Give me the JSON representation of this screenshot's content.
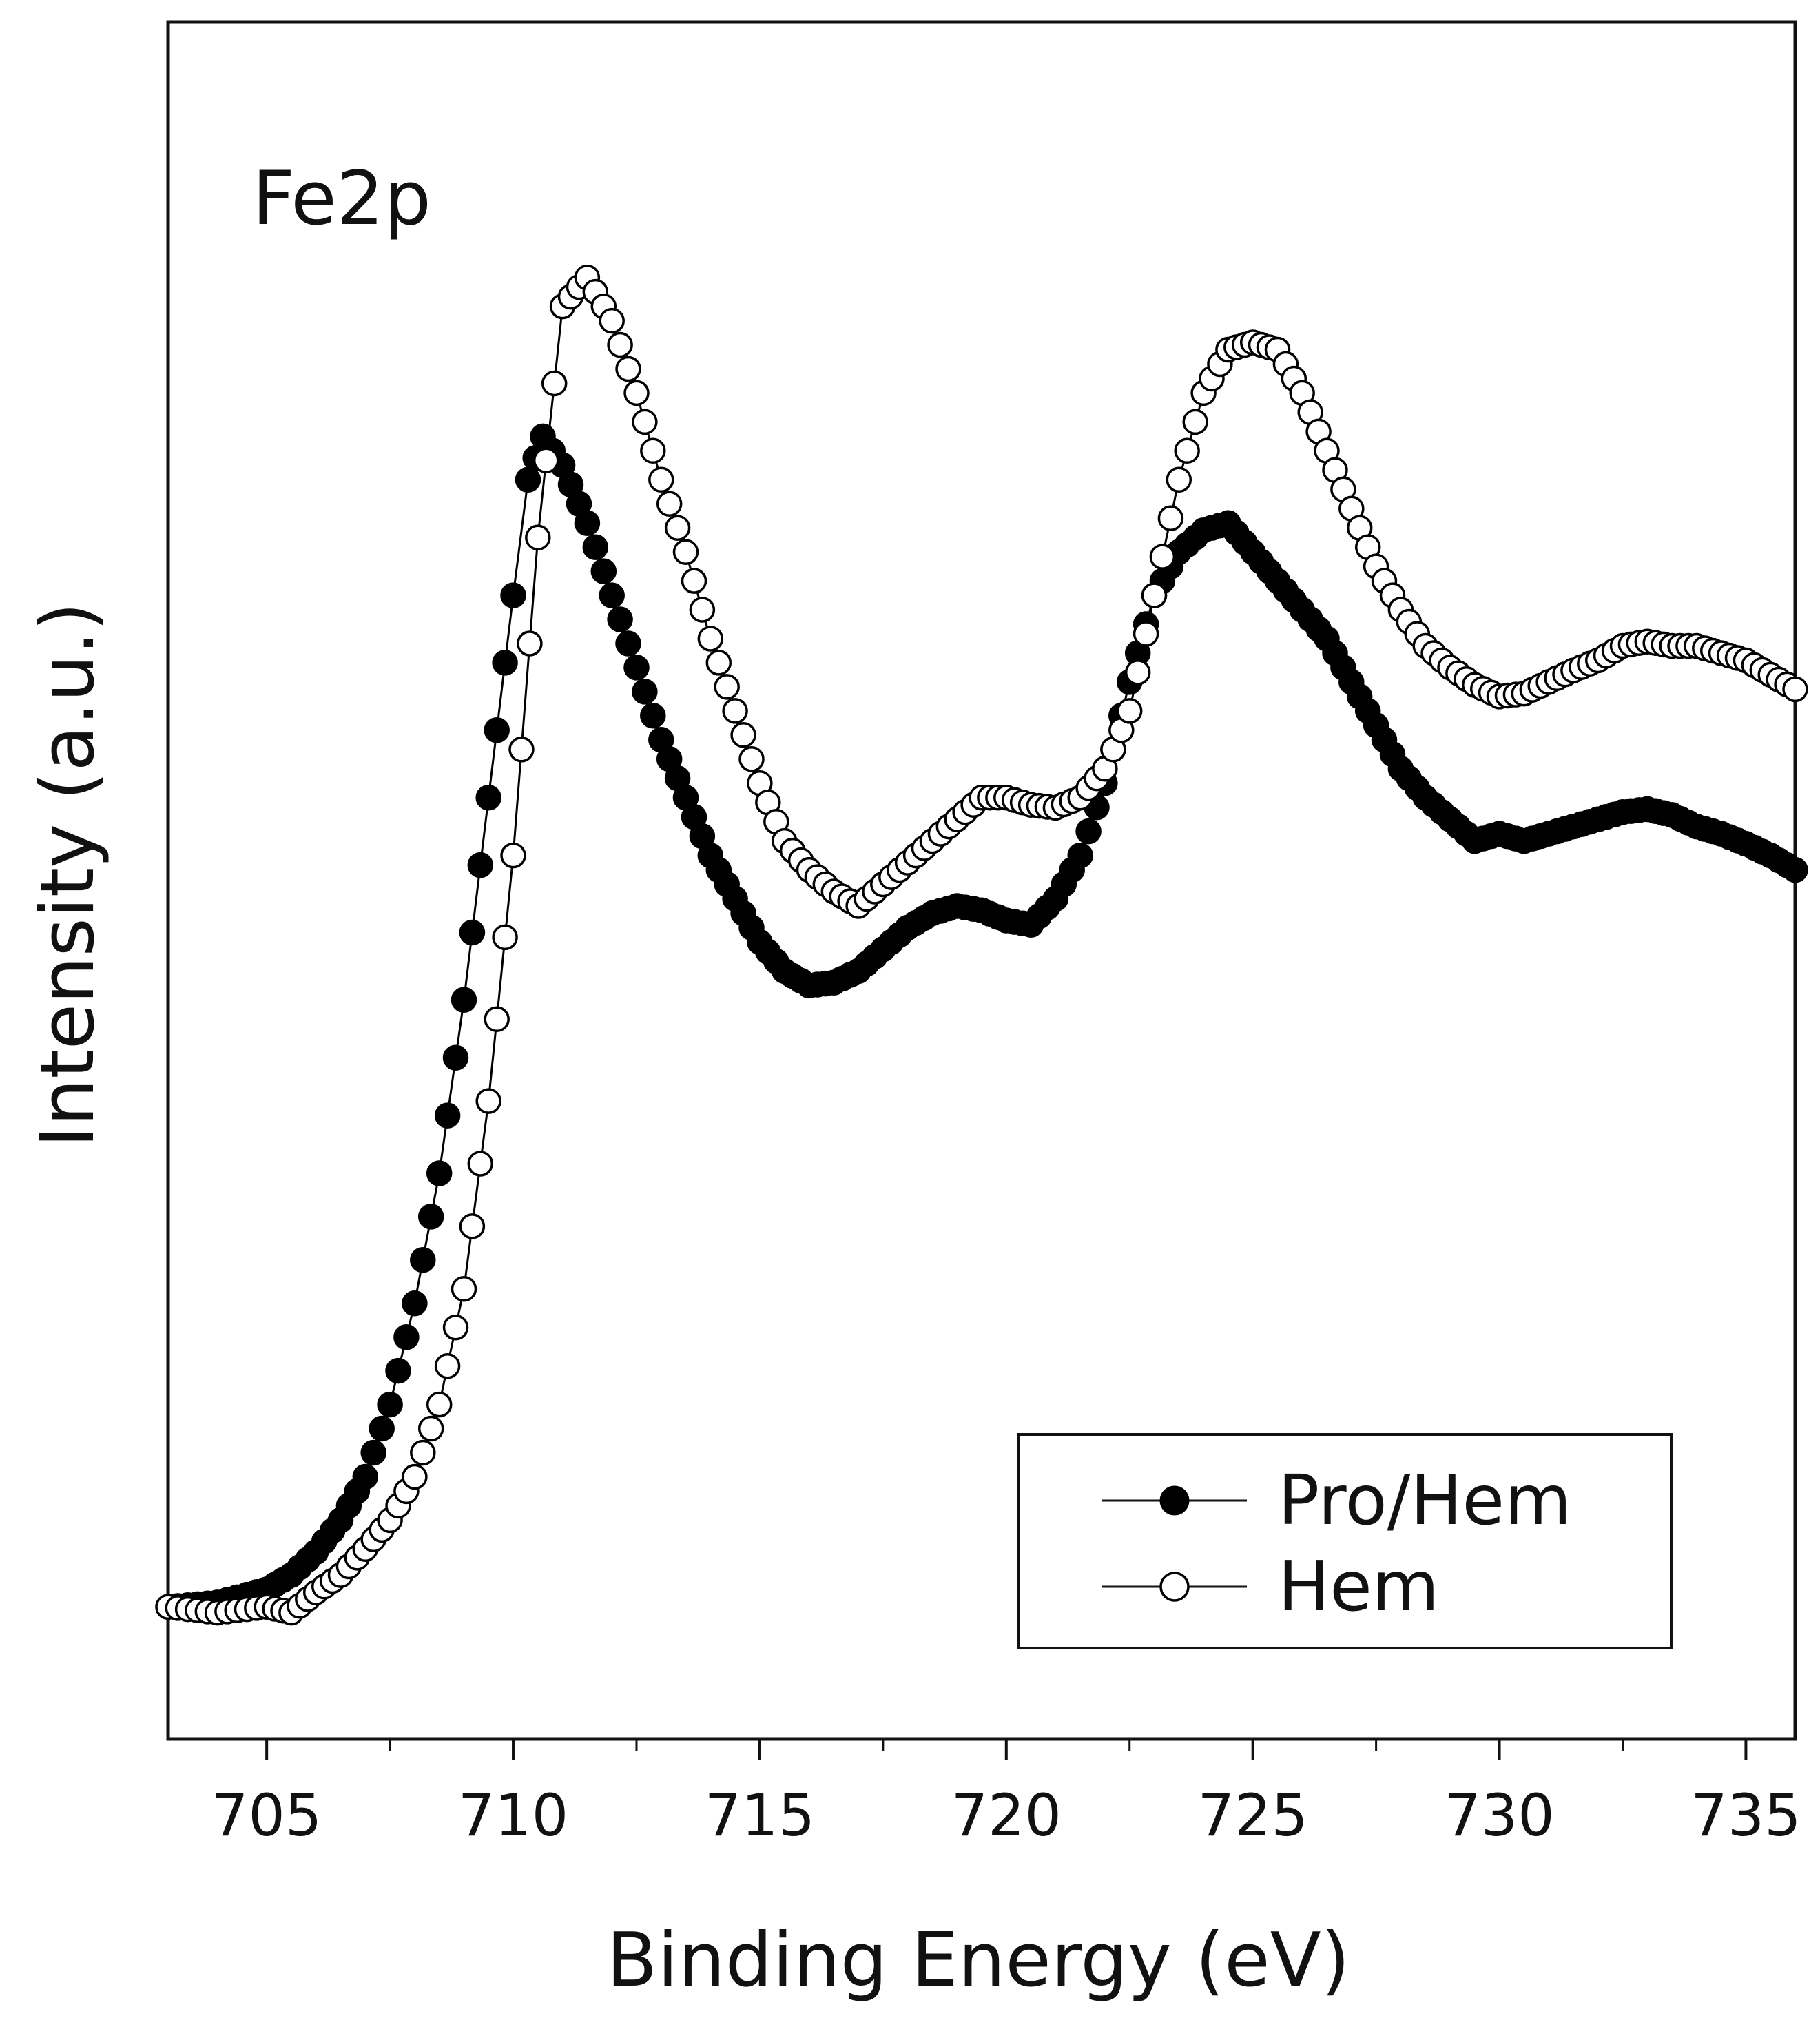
{
  "chart_data": {
    "type": "scatter",
    "panel_label": "Fe2p",
    "xlabel": "Binding Energy (eV)",
    "ylabel": "Intensity (a.u.)",
    "xlim": [
      703,
      736
    ],
    "ylim": [
      -0.08,
      1.05
    ],
    "x_ticks": [
      705,
      710,
      715,
      720,
      725,
      730,
      735
    ],
    "x_tick_labels": [
      "705",
      "710",
      "715",
      "720",
      "725",
      "730",
      "735"
    ],
    "y_ticks_shown": false,
    "legend": {
      "position": "bottom-right",
      "entries": [
        "Pro/Hem",
        "Hem"
      ]
    },
    "series": [
      {
        "name": "Pro/Hem",
        "marker": "filled-circle",
        "color": "#000000",
        "x": [
          703.0,
          704.0,
          705.0,
          705.5,
          706.0,
          706.5,
          707.0,
          707.5,
          708.0,
          708.5,
          709.0,
          709.5,
          710.0,
          710.3,
          710.6,
          711.0,
          711.5,
          712.0,
          712.5,
          713.0,
          713.5,
          714.0,
          714.5,
          715.0,
          715.5,
          716.0,
          716.5,
          717.0,
          717.5,
          718.0,
          718.5,
          719.0,
          719.5,
          720.0,
          720.5,
          721.0,
          721.5,
          722.0,
          722.5,
          723.0,
          723.5,
          724.0,
          724.5,
          725.0,
          725.5,
          726.0,
          726.5,
          727.0,
          727.5,
          728.0,
          728.5,
          729.0,
          729.5,
          730.0,
          730.5,
          731.0,
          731.5,
          732.0,
          732.5,
          733.0,
          733.5,
          734.0,
          734.5,
          735.0,
          735.5,
          736.0
        ],
        "y": [
          0.0,
          0.003,
          0.012,
          0.022,
          0.038,
          0.06,
          0.09,
          0.14,
          0.21,
          0.3,
          0.42,
          0.56,
          0.7,
          0.78,
          0.81,
          0.79,
          0.75,
          0.7,
          0.65,
          0.6,
          0.56,
          0.52,
          0.49,
          0.46,
          0.44,
          0.43,
          0.432,
          0.44,
          0.455,
          0.47,
          0.48,
          0.485,
          0.482,
          0.475,
          0.472,
          0.49,
          0.52,
          0.57,
          0.64,
          0.7,
          0.73,
          0.745,
          0.75,
          0.73,
          0.71,
          0.69,
          0.67,
          0.64,
          0.61,
          0.58,
          0.56,
          0.545,
          0.53,
          0.535,
          0.53,
          0.535,
          0.54,
          0.545,
          0.55,
          0.552,
          0.548,
          0.54,
          0.535,
          0.528,
          0.52,
          0.51
        ]
      },
      {
        "name": "Hem",
        "marker": "open-circle",
        "color": "#000000",
        "x": [
          703.0,
          704.0,
          705.0,
          705.5,
          706.0,
          706.5,
          707.0,
          707.5,
          708.0,
          708.5,
          709.0,
          709.5,
          710.0,
          710.5,
          711.0,
          711.5,
          712.0,
          712.5,
          713.0,
          713.5,
          714.0,
          714.5,
          715.0,
          715.5,
          716.0,
          716.5,
          717.0,
          717.5,
          718.0,
          718.5,
          719.0,
          719.5,
          720.0,
          720.5,
          721.0,
          721.5,
          722.0,
          722.5,
          723.0,
          723.5,
          724.0,
          724.5,
          725.0,
          725.5,
          726.0,
          726.5,
          727.0,
          727.5,
          728.0,
          728.5,
          729.0,
          729.5,
          730.0,
          730.5,
          731.0,
          731.5,
          732.0,
          732.5,
          733.0,
          733.5,
          734.0,
          734.5,
          735.0,
          735.5,
          736.0
        ],
        "y": [
          0.0,
          -0.004,
          0.0,
          -0.004,
          0.01,
          0.022,
          0.04,
          0.06,
          0.09,
          0.14,
          0.22,
          0.35,
          0.52,
          0.74,
          0.9,
          0.92,
          0.89,
          0.84,
          0.78,
          0.73,
          0.67,
          0.62,
          0.57,
          0.53,
          0.51,
          0.495,
          0.485,
          0.5,
          0.515,
          0.53,
          0.545,
          0.56,
          0.56,
          0.555,
          0.553,
          0.56,
          0.58,
          0.62,
          0.7,
          0.78,
          0.84,
          0.87,
          0.875,
          0.87,
          0.84,
          0.8,
          0.76,
          0.72,
          0.69,
          0.665,
          0.65,
          0.638,
          0.63,
          0.632,
          0.64,
          0.648,
          0.655,
          0.665,
          0.668,
          0.665,
          0.665,
          0.66,
          0.655,
          0.645,
          0.635
        ]
      }
    ]
  }
}
